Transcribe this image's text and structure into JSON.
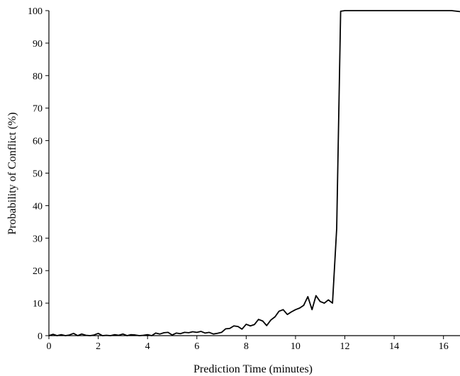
{
  "chart_data": {
    "type": "line",
    "title": "",
    "xlabel": "Prediction Time (minutes)",
    "ylabel": "Probability of Conflict (%)",
    "xlim": [
      0,
      16.67
    ],
    "ylim": [
      0,
      100
    ],
    "xticks": [
      0,
      2,
      4,
      6,
      8,
      10,
      12,
      14,
      16
    ],
    "yticks": [
      0,
      10,
      20,
      30,
      40,
      50,
      60,
      70,
      80,
      90,
      100
    ],
    "grid": false,
    "legend": "none",
    "line_color": "#000000",
    "series": [
      {
        "x": [
          0,
          0.17,
          0.33,
          0.5,
          0.67,
          0.83,
          1.0,
          1.17,
          1.33,
          1.5,
          1.67,
          1.83,
          2.0,
          2.17,
          2.33,
          2.5,
          2.67,
          2.83,
          3.0,
          3.17,
          3.33,
          3.5,
          3.67,
          3.83,
          4.0,
          4.17,
          4.33,
          4.5,
          4.67,
          4.83,
          5.0,
          5.17,
          5.33,
          5.5,
          5.67,
          5.83,
          6.0,
          6.17,
          6.33,
          6.5,
          6.67,
          6.83,
          7.0,
          7.17,
          7.33,
          7.5,
          7.67,
          7.83,
          8.0,
          8.17,
          8.33,
          8.5,
          8.67,
          8.83,
          9.0,
          9.17,
          9.33,
          9.5,
          9.67,
          9.83,
          10.0,
          10.17,
          10.33,
          10.5,
          10.67,
          10.83,
          11.0,
          11.17,
          11.33,
          11.5,
          11.67,
          11.83,
          12.0,
          12.33,
          12.67,
          13.0,
          13.5,
          14.0,
          14.5,
          15.0,
          15.5,
          16.0,
          16.33,
          16.67
        ],
        "values": [
          0,
          0.4,
          0,
          0.3,
          0,
          0.2,
          0.7,
          0,
          0.5,
          0.1,
          0,
          0.2,
          0.7,
          0,
          0.1,
          0,
          0.3,
          0.1,
          0.5,
          0,
          0.3,
          0.2,
          0,
          0.1,
          0.3,
          0,
          0.8,
          0.5,
          0.9,
          1.0,
          0.2,
          0.8,
          0.6,
          1.0,
          0.9,
          1.2,
          1.0,
          1.3,
          0.8,
          1.0,
          0.5,
          0.7,
          1.0,
          2.1,
          2.2,
          3.0,
          2.8,
          2.0,
          3.5,
          3.0,
          3.4,
          5.0,
          4.5,
          3.1,
          4.8,
          5.8,
          7.5,
          8.0,
          6.5,
          7.3,
          8.0,
          8.5,
          9.3,
          12.0,
          8.0,
          12.3,
          10.5,
          10.0,
          11.0,
          10.0,
          33.0,
          99.8,
          100,
          100,
          100,
          100,
          100,
          100,
          100,
          100,
          100,
          100,
          100,
          99.7
        ]
      }
    ]
  }
}
